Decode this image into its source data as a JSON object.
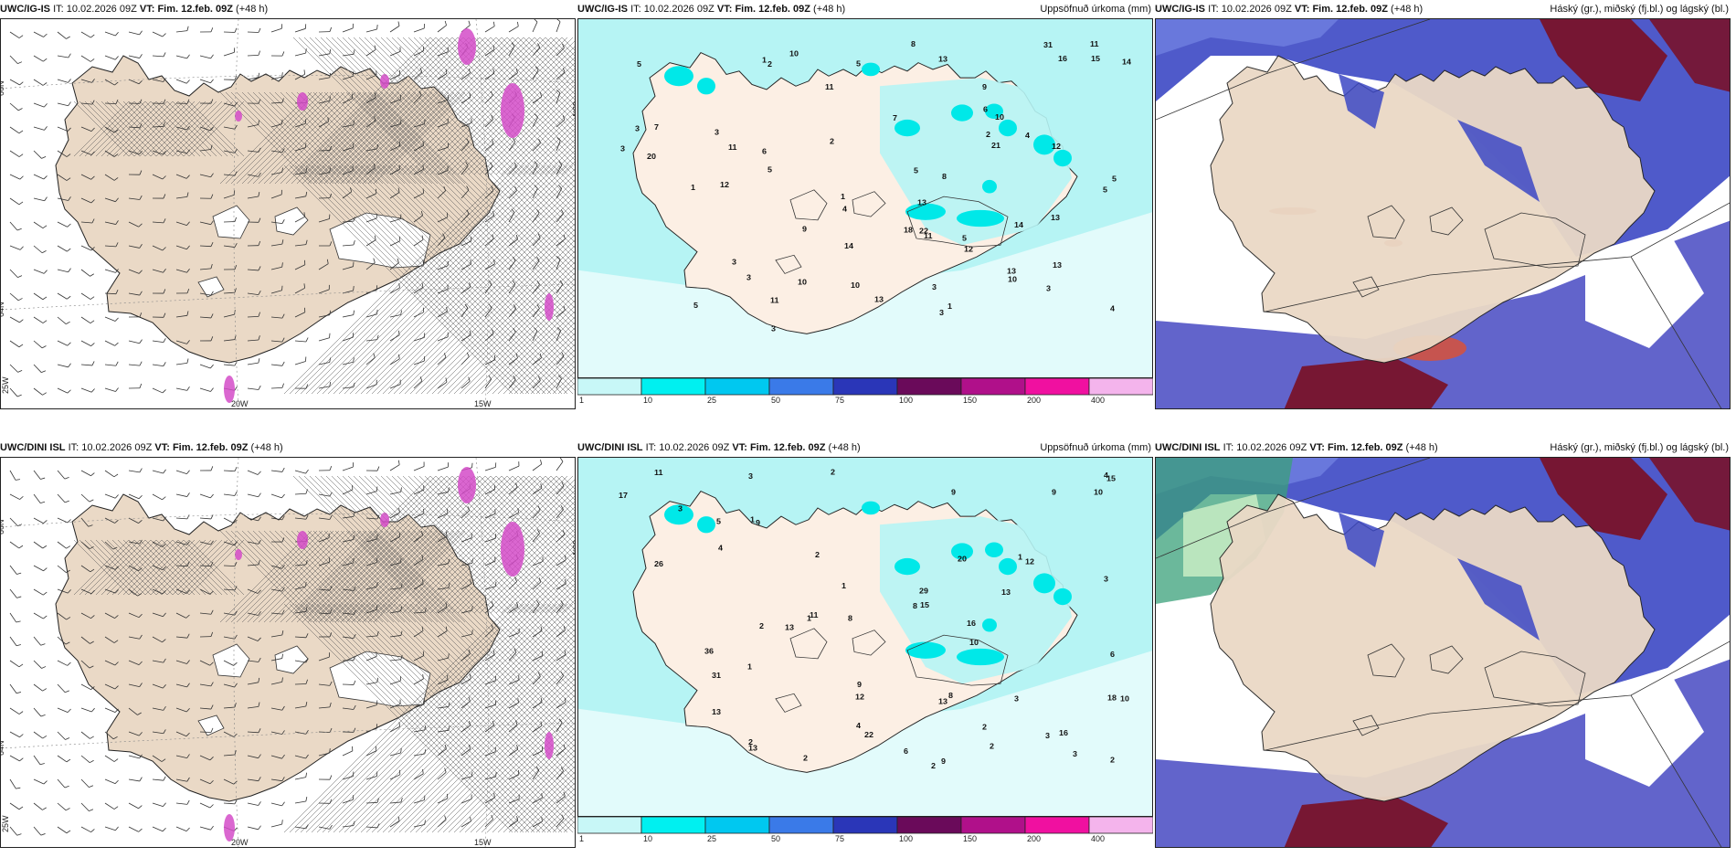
{
  "panels": [
    {
      "id": "p1",
      "model": "UWC/IG-IS",
      "it_label": "IT:",
      "it": "10.02.2026 09Z",
      "vt_label": "VT:",
      "vt": "Fim. 12.feb. 09Z",
      "lead": "(+48 h)",
      "right": "",
      "kind": "wind"
    },
    {
      "id": "p2",
      "model": "UWC/IG-IS",
      "it_label": "IT:",
      "it": "10.02.2026 09Z",
      "vt_label": "VT:",
      "vt": "Fim. 12.feb. 09Z",
      "lead": "(+48 h)",
      "right": "Uppsöfnuð úrkoma (mm)",
      "kind": "precip"
    },
    {
      "id": "p3",
      "model": "UWC/IG-IS",
      "it_label": "IT:",
      "it": "10.02.2026 09Z",
      "vt_label": "VT:",
      "vt": "Fim. 12.feb. 09Z",
      "lead": "(+48 h)",
      "right": "Háský (gr.), miðský (fj.bl.) og lágský (bl.)",
      "kind": "cloud"
    },
    {
      "id": "p4",
      "model": "UWC/DINI ISL",
      "it_label": "IT:",
      "it": "10.02.2026 09Z",
      "vt_label": "VT:",
      "vt": "Fim. 12.feb. 09Z",
      "lead": "(+48 h)",
      "right": "",
      "kind": "wind"
    },
    {
      "id": "p5",
      "model": "UWC/DINI ISL",
      "it_label": "IT:",
      "it": "10.02.2026 09Z",
      "vt_label": "VT:",
      "vt": "Fim. 12.feb. 09Z",
      "lead": "(+48 h)",
      "right": "Uppsöfnuð úrkoma (mm)",
      "kind": "precip"
    },
    {
      "id": "p6",
      "model": "UWC/DINI ISL",
      "it_label": "IT:",
      "it": "10.02.2026 09Z",
      "vt_label": "VT:",
      "vt": "Fim. 12.feb. 09Z",
      "lead": "(+48 h)",
      "right": "Háský (gr.), miðský (fj.bl.) og lágský (bl.)",
      "kind": "cloud"
    }
  ],
  "wind_axis": {
    "lat_top": "66N",
    "lat_bottom": "64N",
    "lon_left": "25W",
    "lon_mid": "20W",
    "lon_right": "15W",
    "lat_right": "65N"
  },
  "colorbar": {
    "ticks": [
      "1",
      "10",
      "25",
      "50",
      "75",
      "100",
      "150",
      "200",
      "400"
    ],
    "colors": [
      "#c8f7f7",
      "#00f0f0",
      "#00c8f0",
      "#3a7ae8",
      "#2a36b8",
      "#6a0a5a",
      "#b0108a",
      "#f010a0",
      "#f4b4ec"
    ]
  },
  "precip_numbers": {
    "p2": [
      "1",
      "2",
      "3",
      "3",
      "4",
      "3",
      "5",
      "5",
      "4",
      "3",
      "3",
      "1",
      "22",
      "21",
      "31",
      "20",
      "16",
      "14",
      "12",
      "13",
      "11",
      "11",
      "10",
      "8",
      "10",
      "12",
      "11",
      "13",
      "11",
      "12",
      "11",
      "9",
      "10",
      "10",
      "10",
      "8",
      "7",
      "5",
      "5",
      "5",
      "5",
      "14",
      "13",
      "13",
      "13",
      "18",
      "14",
      "13",
      "15",
      "9",
      "7",
      "6",
      "6",
      "5",
      "4",
      "3",
      "2",
      "3",
      "3",
      "3",
      "2",
      "1",
      "1",
      "5"
    ],
    "p5": [
      "2",
      "2",
      "2",
      "2",
      "3",
      "3",
      "2",
      "3",
      "2",
      "2",
      "9",
      "22",
      "11",
      "12",
      "9",
      "8",
      "26",
      "13",
      "13",
      "17",
      "13",
      "15",
      "29",
      "12",
      "36",
      "31",
      "11",
      "10",
      "8",
      "9",
      "9",
      "10",
      "13",
      "16",
      "18",
      "20",
      "16",
      "15",
      "13",
      "10",
      "9",
      "8",
      "6",
      "6",
      "5",
      "4",
      "4",
      "3",
      "2",
      "3",
      "1",
      "1",
      "1",
      "1",
      "1",
      "3",
      "2",
      "4"
    ]
  },
  "colors": {
    "land": "#ead9c6",
    "precip_land": "#fcefe4",
    "precip_sea": "#b6f4f4",
    "cloud_high": "#7a0e22",
    "cloud_mid": "#5a5cc8",
    "cloud_low": "#3c48c4",
    "cloud_land": "#ead9c6",
    "wind_pink": "#d44cc8"
  }
}
